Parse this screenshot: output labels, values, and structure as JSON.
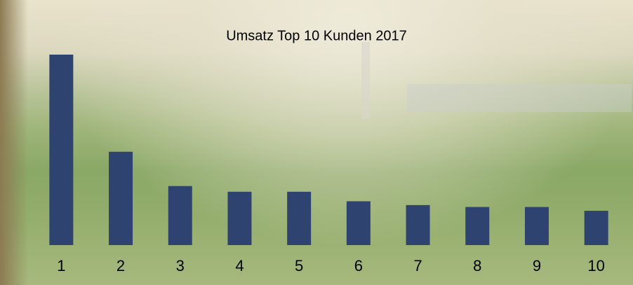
{
  "chart_data": {
    "type": "bar",
    "title": "Umsatz Top 10 Kunden 2017",
    "categories": [
      "1",
      "2",
      "3",
      "4",
      "5",
      "6",
      "7",
      "8",
      "9",
      "10"
    ],
    "values": [
      100,
      49,
      31,
      28,
      28,
      23,
      21,
      20,
      20,
      18
    ],
    "color": "#2e4370"
  }
}
